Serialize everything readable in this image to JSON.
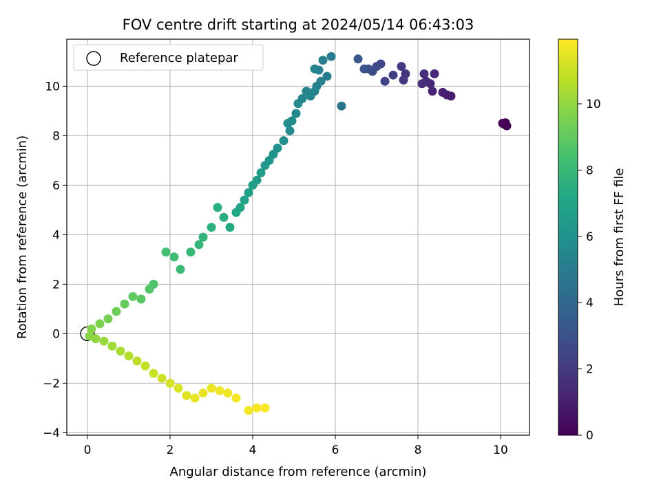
{
  "chart_data": {
    "type": "scatter",
    "title": "FOV centre drift starting at 2024/05/14 06:43:03",
    "xlabel": "Angular distance from reference (arcmin)",
    "ylabel": "Rotation from reference (arcmin)",
    "xlim": [
      -0.5,
      10.7
    ],
    "ylim": [
      -4.1,
      11.9
    ],
    "xticks": [
      0,
      2,
      4,
      6,
      8,
      10
    ],
    "yticks": [
      -4,
      -2,
      0,
      2,
      4,
      6,
      8,
      10
    ],
    "grid": true,
    "legend": {
      "placement": "top-left",
      "entries": [
        "Reference platepar"
      ]
    },
    "reference_point": {
      "x": 0,
      "y": 0,
      "label": "Reference platepar"
    },
    "colorbar": {
      "label": "Hours from first FF file",
      "colormap": "viridis",
      "range": [
        0,
        11.95
      ],
      "ticks": [
        0,
        2,
        4,
        6,
        8,
        10
      ]
    },
    "points": [
      [
        10.05,
        8.5,
        0.0
      ],
      [
        10.1,
        8.45,
        0.02
      ],
      [
        10.15,
        8.4,
        0.05
      ],
      [
        10.12,
        8.52,
        0.08
      ],
      [
        8.8,
        9.6,
        0.9
      ],
      [
        8.7,
        9.65,
        1.0
      ],
      [
        8.6,
        9.75,
        1.05
      ],
      [
        8.35,
        9.8,
        1.2
      ],
      [
        8.4,
        10.5,
        1.3
      ],
      [
        8.3,
        10.1,
        1.35
      ],
      [
        8.2,
        10.2,
        1.4
      ],
      [
        8.15,
        10.5,
        1.5
      ],
      [
        8.1,
        10.1,
        1.55
      ],
      [
        7.7,
        10.5,
        1.8
      ],
      [
        7.65,
        10.25,
        1.9
      ],
      [
        7.6,
        10.8,
        2.0
      ],
      [
        7.4,
        10.45,
        2.2
      ],
      [
        7.2,
        10.2,
        2.35
      ],
      [
        7.1,
        10.9,
        2.5
      ],
      [
        7.0,
        10.8,
        2.6
      ],
      [
        6.9,
        10.6,
        2.75
      ],
      [
        6.8,
        10.7,
        2.85
      ],
      [
        6.7,
        10.7,
        3.0
      ],
      [
        6.55,
        11.1,
        3.2
      ],
      [
        6.15,
        9.2,
        4.6
      ],
      [
        5.9,
        11.2,
        4.9
      ],
      [
        5.7,
        11.05,
        5.0
      ],
      [
        5.8,
        10.4,
        5.05
      ],
      [
        5.65,
        10.2,
        5.1
      ],
      [
        5.6,
        10.65,
        5.15
      ],
      [
        5.55,
        10.0,
        5.2
      ],
      [
        5.5,
        10.7,
        5.3
      ],
      [
        5.5,
        9.8,
        5.35
      ],
      [
        5.4,
        9.6,
        5.4
      ],
      [
        5.3,
        9.8,
        5.45
      ],
      [
        5.2,
        9.5,
        5.5
      ],
      [
        5.1,
        9.3,
        5.55
      ],
      [
        5.05,
        8.9,
        5.6
      ],
      [
        4.95,
        8.6,
        5.7
      ],
      [
        4.9,
        8.2,
        5.75
      ],
      [
        4.85,
        8.5,
        5.8
      ],
      [
        4.75,
        7.8,
        5.9
      ],
      [
        4.6,
        7.5,
        6.05
      ],
      [
        4.5,
        7.25,
        6.15
      ],
      [
        4.4,
        7.0,
        6.25
      ],
      [
        4.3,
        6.8,
        6.35
      ],
      [
        4.2,
        6.5,
        6.45
      ],
      [
        4.1,
        6.2,
        6.55
      ],
      [
        4.0,
        6.0,
        6.65
      ],
      [
        3.9,
        5.7,
        6.75
      ],
      [
        3.8,
        5.4,
        6.85
      ],
      [
        3.7,
        5.1,
        7.0
      ],
      [
        3.6,
        4.9,
        7.1
      ],
      [
        3.45,
        4.3,
        7.25
      ],
      [
        3.3,
        4.7,
        7.4
      ],
      [
        3.15,
        5.1,
        7.5
      ],
      [
        3.0,
        4.3,
        7.6
      ],
      [
        2.8,
        3.9,
        7.75
      ],
      [
        2.7,
        3.6,
        7.85
      ],
      [
        2.5,
        3.3,
        7.95
      ],
      [
        2.25,
        2.6,
        8.1
      ],
      [
        2.1,
        3.1,
        8.2
      ],
      [
        1.9,
        3.3,
        8.3
      ],
      [
        1.6,
        2.0,
        8.55
      ],
      [
        1.5,
        1.8,
        8.7
      ],
      [
        1.3,
        1.4,
        8.85
      ],
      [
        1.1,
        1.5,
        9.0
      ],
      [
        0.9,
        1.2,
        9.15
      ],
      [
        0.7,
        0.9,
        9.3
      ],
      [
        0.5,
        0.6,
        9.45
      ],
      [
        0.3,
        0.4,
        9.6
      ],
      [
        0.1,
        0.2,
        9.75
      ],
      [
        0.05,
        -0.1,
        9.85
      ],
      [
        0.2,
        -0.2,
        9.95
      ],
      [
        0.4,
        -0.3,
        10.1
      ],
      [
        0.6,
        -0.5,
        10.25
      ],
      [
        0.8,
        -0.7,
        10.4
      ],
      [
        1.0,
        -0.9,
        10.55
      ],
      [
        1.2,
        -1.1,
        10.7
      ],
      [
        1.4,
        -1.3,
        10.85
      ],
      [
        1.6,
        -1.6,
        11.0
      ],
      [
        1.8,
        -1.8,
        11.1
      ],
      [
        2.0,
        -2.0,
        11.2
      ],
      [
        2.2,
        -2.2,
        11.3
      ],
      [
        2.4,
        -2.5,
        11.4
      ],
      [
        2.6,
        -2.6,
        11.5
      ],
      [
        2.8,
        -2.4,
        11.55
      ],
      [
        3.0,
        -2.2,
        11.6
      ],
      [
        3.2,
        -2.3,
        11.65
      ],
      [
        3.4,
        -2.4,
        11.7
      ],
      [
        3.6,
        -2.6,
        11.75
      ],
      [
        3.9,
        -3.1,
        11.8
      ],
      [
        4.1,
        -3.0,
        11.85
      ],
      [
        4.3,
        -3.0,
        11.9
      ]
    ]
  }
}
